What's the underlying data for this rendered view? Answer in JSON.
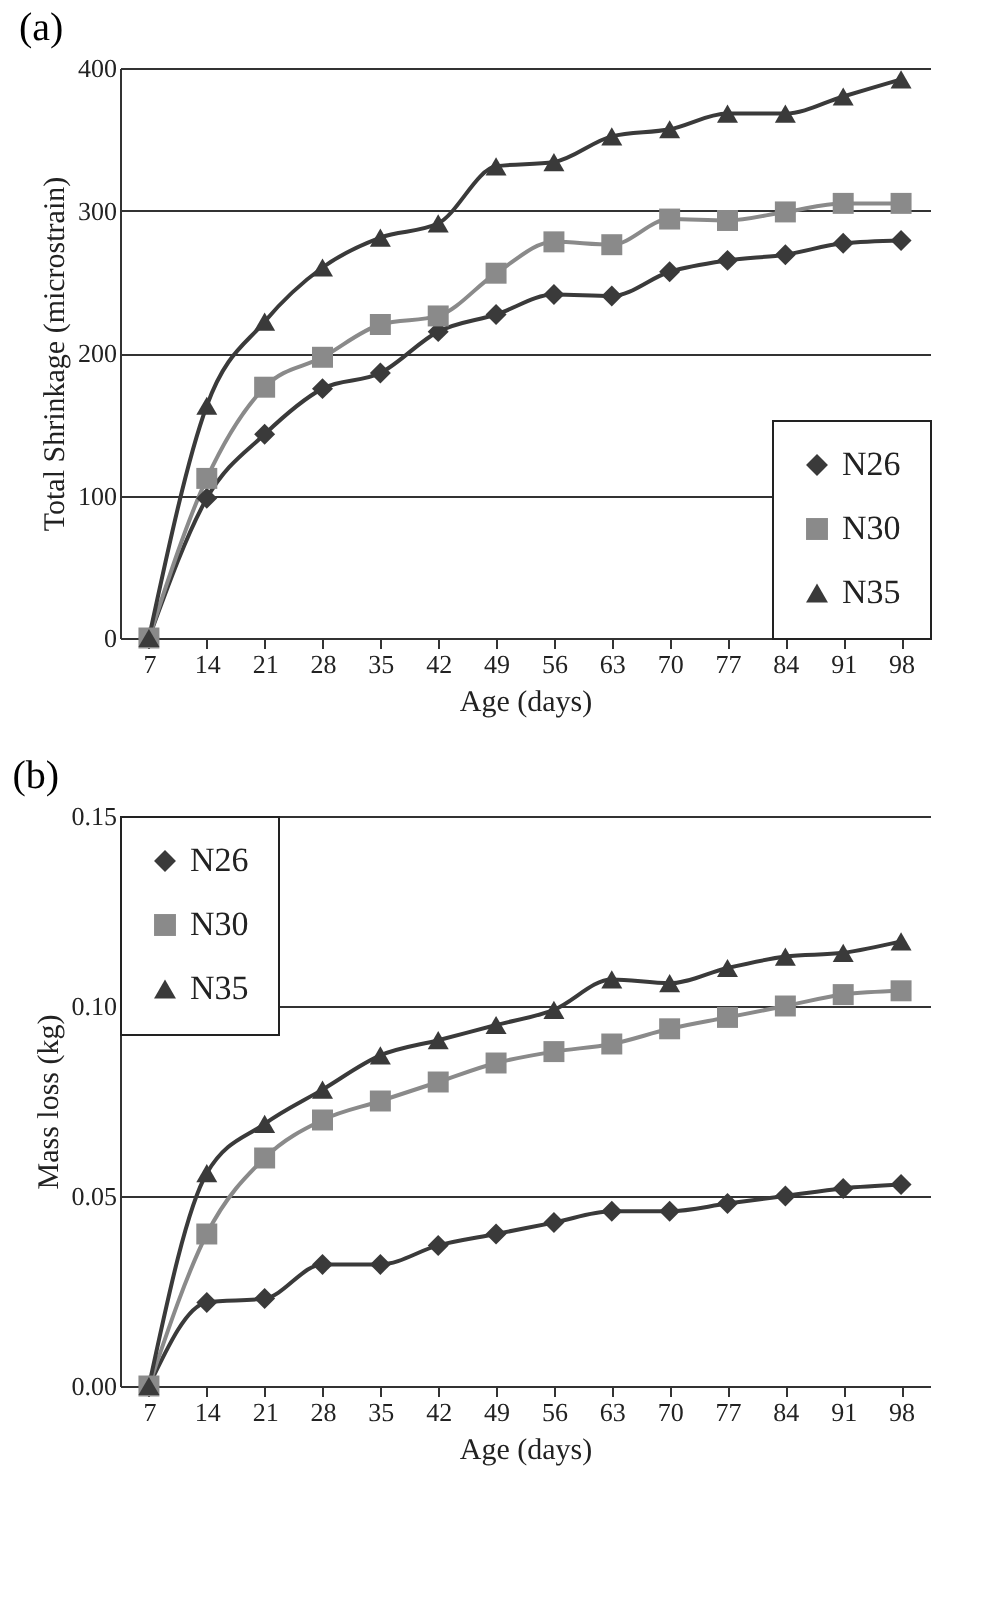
{
  "chart_data": [
    {
      "type": "line",
      "title": "(a)",
      "xlabel": "Age (days)",
      "ylabel": "Total Shrinkage (microstrain)",
      "categories": [
        "7",
        "14",
        "21",
        "28",
        "35",
        "42",
        "49",
        "56",
        "63",
        "70",
        "77",
        "84",
        "91",
        "98"
      ],
      "series": [
        {
          "name": "N26",
          "color": "#3a3a3a",
          "marker": "diamond",
          "values": [
            0,
            98,
            143,
            175,
            186,
            215,
            227,
            241,
            240,
            257,
            265,
            269,
            277,
            279
          ]
        },
        {
          "name": "N30",
          "color": "#8a8a8a",
          "marker": "square",
          "values": [
            0,
            112,
            176,
            197,
            220,
            226,
            256,
            278,
            276,
            294,
            293,
            299,
            305,
            305
          ]
        },
        {
          "name": "N35",
          "color": "#3a3a3a",
          "marker": "triangle",
          "values": [
            0,
            163,
            222,
            260,
            281,
            291,
            331,
            334,
            352,
            357,
            368,
            368,
            380,
            392
          ]
        }
      ],
      "ylim": [
        0,
        400
      ],
      "yticks": [
        0,
        100,
        200,
        300,
        400
      ],
      "grid": "y",
      "legend": "bottom right",
      "line_style": "solid"
    },
    {
      "type": "line",
      "title": "(b)",
      "xlabel": "Age (days)",
      "ylabel": "Mass loss (kg)",
      "categories": [
        "7",
        "14",
        "21",
        "28",
        "35",
        "42",
        "49",
        "56",
        "63",
        "70",
        "77",
        "84",
        "91",
        "98"
      ],
      "series": [
        {
          "name": "N26",
          "color": "#3a3a3a",
          "marker": "diamond",
          "values": [
            0,
            0.022,
            0.023,
            0.032,
            0.032,
            0.037,
            0.04,
            0.043,
            0.046,
            0.046,
            0.048,
            0.05,
            0.052,
            0.053
          ]
        },
        {
          "name": "N30",
          "color": "#8a8a8a",
          "marker": "square",
          "values": [
            0,
            0.04,
            0.06,
            0.07,
            0.075,
            0.08,
            0.085,
            0.088,
            0.09,
            0.094,
            0.097,
            0.1,
            0.103,
            0.104
          ]
        },
        {
          "name": "N35",
          "color": "#3a3a3a",
          "marker": "triangle",
          "values": [
            0,
            0.056,
            0.069,
            0.078,
            0.087,
            0.091,
            0.095,
            0.099,
            0.107,
            0.106,
            0.11,
            0.113,
            0.114,
            0.117
          ]
        }
      ],
      "ylim": [
        0,
        0.15
      ],
      "yticks": [
        {
          "value": 0,
          "label": "0.00"
        },
        {
          "value": 0.05,
          "label": "0.05"
        },
        {
          "value": 0.1,
          "label": "0.10"
        },
        {
          "value": 0.15,
          "label": "0.15"
        }
      ],
      "grid": "y",
      "legend": "top left",
      "line_style": "solid"
    }
  ]
}
